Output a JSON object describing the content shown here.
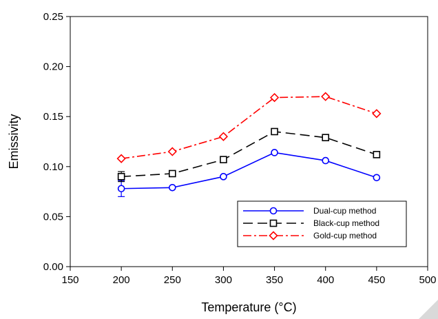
{
  "chart_data": {
    "type": "line",
    "xlabel": "Temperature (°C)",
    "ylabel": "Emissivity",
    "xlim": [
      150,
      500
    ],
    "ylim": [
      0.0,
      0.25
    ],
    "x_ticks": [
      "150",
      "200",
      "250",
      "300",
      "350",
      "400",
      "450",
      "500"
    ],
    "y_ticks": [
      "0.00",
      "0.05",
      "0.10",
      "0.15",
      "0.20",
      "0.25"
    ],
    "grid": false,
    "legend_position": "bottom-right",
    "x": [
      200,
      250,
      300,
      350,
      400,
      450
    ],
    "series": [
      {
        "name": "Dual-cup method",
        "values": [
          0.078,
          0.079,
          0.09,
          0.114,
          0.106,
          0.089
        ],
        "error": [
          0.008,
          0.001,
          0.001,
          0.001,
          0.001,
          0.001
        ],
        "color": "#0000ff",
        "dash": "solid",
        "marker": "circle"
      },
      {
        "name": "Black-cup method",
        "values": [
          0.09,
          0.093,
          0.107,
          0.135,
          0.129,
          0.112
        ],
        "error": [
          0.005,
          0.001,
          0.001,
          0.001,
          0.001,
          0.001
        ],
        "color": "#000000",
        "dash": "dashed",
        "marker": "square"
      },
      {
        "name": "Gold-cup method",
        "values": [
          0.108,
          0.115,
          0.13,
          0.169,
          0.17,
          0.153
        ],
        "error": [
          0.001,
          0.001,
          0.001,
          0.001,
          0.001,
          0.001
        ],
        "color": "#ff0000",
        "dash": "dash-dot",
        "marker": "diamond"
      }
    ]
  }
}
